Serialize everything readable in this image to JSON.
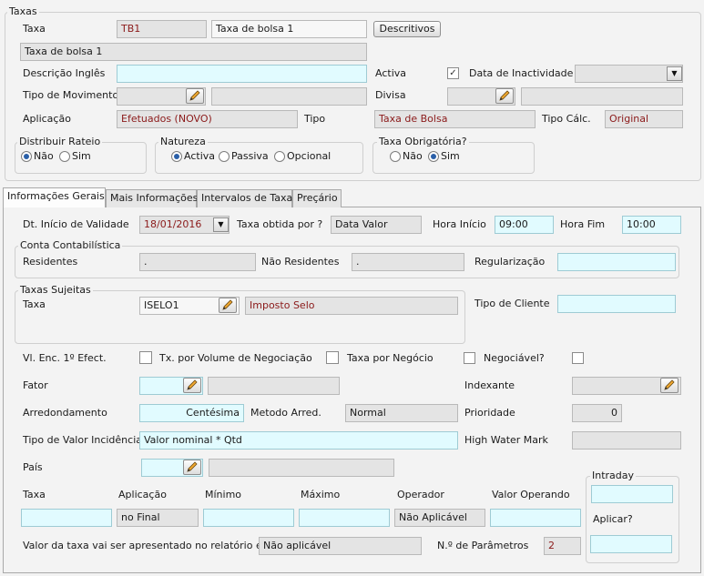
{
  "taxas_group": {
    "title": "Taxas",
    "taxa_label": "Taxa",
    "taxa_code": "TB1",
    "taxa_name": "Taxa de bolsa 1",
    "descritivos_button": "Descritivos",
    "description": "Taxa de bolsa 1",
    "descricao_ingles_label": "Descrição Inglês",
    "descricao_ingles_value": "",
    "activa_label": "Activa",
    "activa_checked": true,
    "data_inactividade_label": "Data de Inactividade",
    "data_inactividade_value": "",
    "tipo_movimento_label": "Tipo de Movimento",
    "divisa_label": "Divisa",
    "aplicacao_label": "Aplicação",
    "aplicacao_value": "Efetuados (NOVO)",
    "tipo_label": "Tipo",
    "tipo_value": "Taxa de Bolsa",
    "tipo_calc_label": "Tipo Cálc.",
    "tipo_calc_value": "Original",
    "distribuir_rateio": {
      "title": "Distribuir Rateio",
      "options": [
        "Não",
        "Sim"
      ],
      "selected": "Não"
    },
    "natureza": {
      "title": "Natureza",
      "options": [
        "Activa",
        "Passiva",
        "Opcional"
      ],
      "selected": "Activa"
    },
    "taxa_obrigatoria": {
      "title": "Taxa Obrigatória?",
      "options": [
        "Não",
        "Sim"
      ],
      "selected": "Sim"
    }
  },
  "tabs": [
    {
      "label": "Informações Gerais",
      "active": true
    },
    {
      "label": "Mais Informações"
    },
    {
      "label": "Intervalos de Taxa"
    },
    {
      "label": "Preçário"
    }
  ],
  "info": {
    "dt_inicio_label": "Dt. Início de Validade",
    "dt_inicio_value": "18/01/2016",
    "taxa_obtida_label": "Taxa obtida por ?",
    "taxa_obtida_value": "Data Valor",
    "hora_inicio_label": "Hora Início",
    "hora_inicio_value": "09:00",
    "hora_fim_label": "Hora Fim",
    "hora_fim_value": "10:00",
    "conta_title": "Conta Contabilística",
    "residentes_label": "Residentes",
    "residentes_value": ".",
    "nao_residentes_label": "Não Residentes",
    "nao_residentes_value": ".",
    "regularizacao_label": "Regularização",
    "regularizacao_value": "",
    "sujeitas_title": "Taxas Sujeitas",
    "sujeitas_taxa_label": "Taxa",
    "sujeitas_code": "ISELO1",
    "sujeitas_name": "Imposto Selo",
    "tipo_cliente_label": "Tipo de Cliente",
    "tipo_cliente_value": "",
    "vl_enc_label": "Vl. Enc. 1º Efect.",
    "tx_volume_label": "Tx. por Volume de Negociação",
    "taxa_negocio_label": "Taxa por Negócio",
    "negociavel_label": "Negociável?",
    "fator_label": "Fator",
    "indexante_label": "Indexante",
    "arredondamento_label": "Arredondamento",
    "arredondamento_value": "Centésima",
    "metodo_label": "Metodo Arred.",
    "metodo_value": "Normal",
    "prioridade_label": "Prioridade",
    "prioridade_value": "0",
    "tipo_valor_label": "Tipo de Valor Incidência",
    "tipo_valor_value": "Valor nominal * Qtd",
    "high_water_label": "High Water Mark",
    "pais_label": "País",
    "intraday_title": "Intraday",
    "aplicar_label": "Aplicar?",
    "col_taxa": "Taxa",
    "col_aplicacao": "Aplicação",
    "col_minimo": "Mínimo",
    "col_maximo": "Máximo",
    "col_operador": "Operador",
    "col_valor_operando": "Valor Operando",
    "aplicacao_value": "no Final",
    "operador_value": "Não Aplicável",
    "relatorio_label": "Valor da taxa vai ser apresentado no relatório em:",
    "relatorio_value": "Não aplicável",
    "parametros_label": "N.º de Parâmetros",
    "parametros_value": "2"
  }
}
